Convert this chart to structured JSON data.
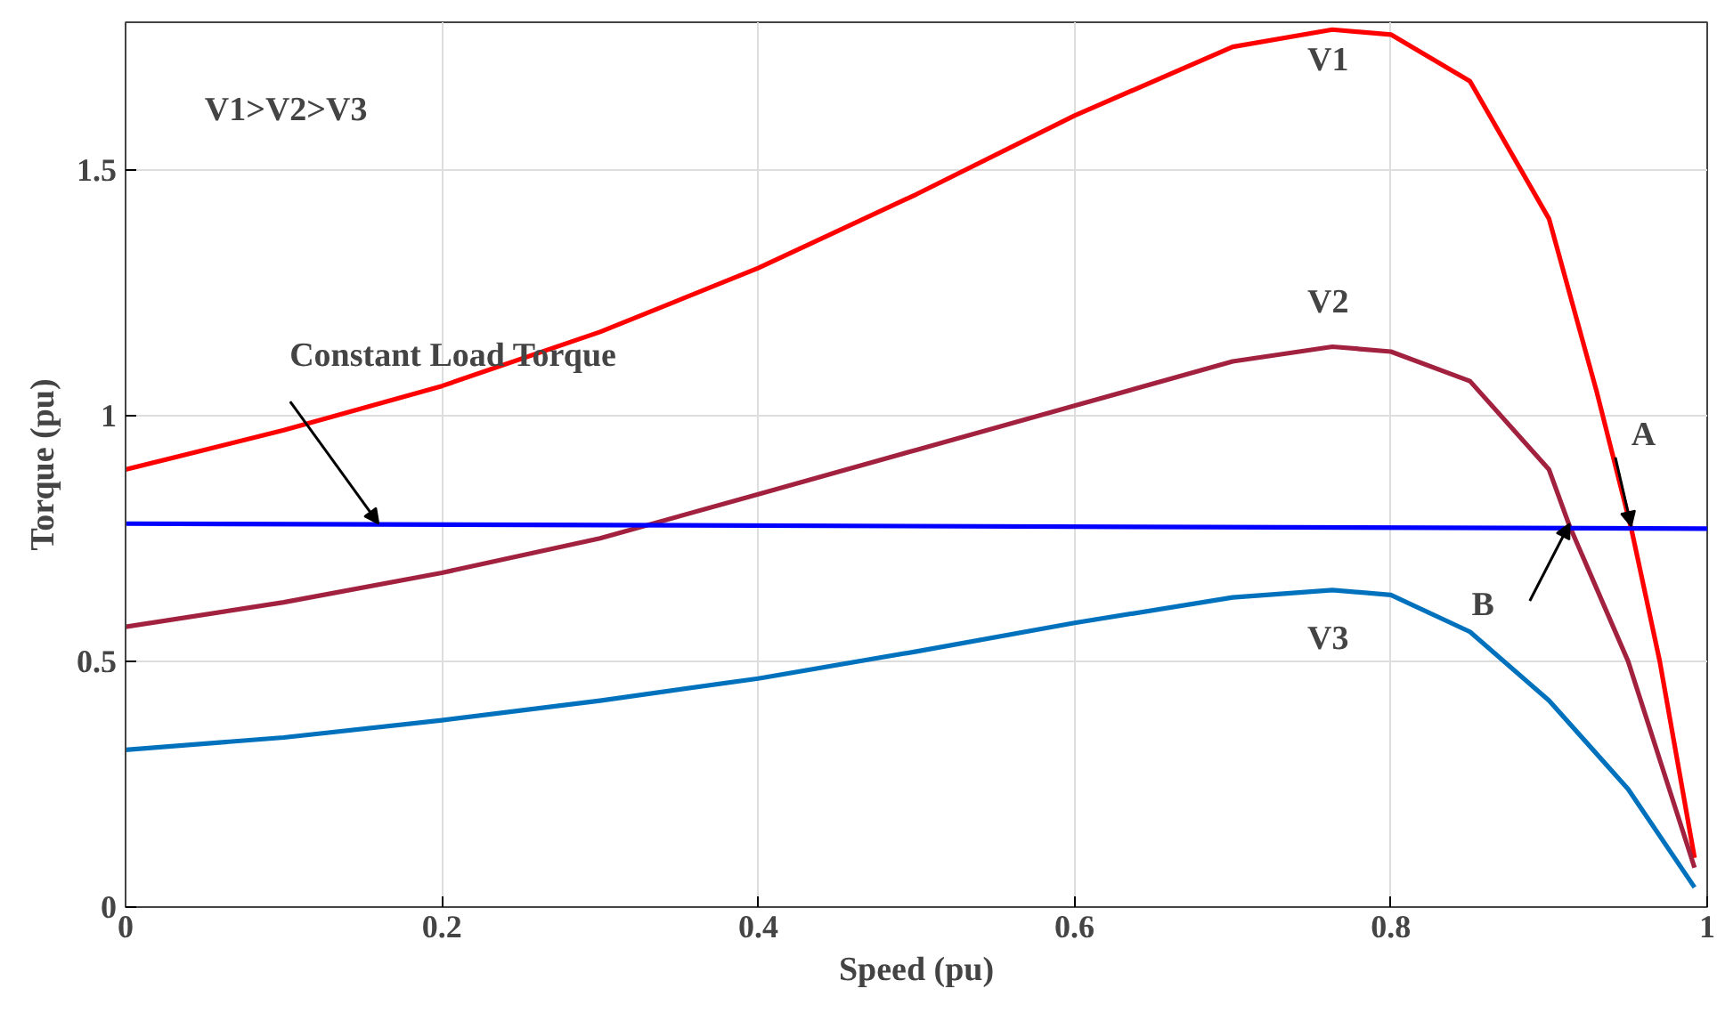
{
  "chart_data": {
    "type": "line",
    "xlabel": "Speed (pu)",
    "ylabel": "Torque (pu)",
    "xlim": [
      0,
      1
    ],
    "ylim": [
      0,
      1.8
    ],
    "xticks": [
      0,
      0.2,
      0.4,
      0.6,
      0.8,
      1
    ],
    "yticks": [
      0,
      0.5,
      1,
      1.5
    ],
    "grid": true,
    "line_style": "solid",
    "series": [
      {
        "name": "V1",
        "color": "#ff0000",
        "x": [
          0,
          0.1,
          0.2,
          0.3,
          0.4,
          0.5,
          0.6,
          0.7,
          0.763,
          0.8,
          0.85,
          0.9,
          0.93,
          0.952,
          0.97,
          0.992
        ],
        "values": [
          0.89,
          0.97,
          1.06,
          1.17,
          1.3,
          1.45,
          1.61,
          1.75,
          1.785,
          1.775,
          1.68,
          1.4,
          1.05,
          0.77,
          0.5,
          0.1
        ]
      },
      {
        "name": "V2",
        "color": "#a2213f",
        "x": [
          0,
          0.1,
          0.2,
          0.3,
          0.4,
          0.5,
          0.6,
          0.7,
          0.763,
          0.8,
          0.85,
          0.9,
          0.913,
          0.95,
          0.992
        ],
        "values": [
          0.57,
          0.62,
          0.68,
          0.75,
          0.84,
          0.93,
          1.02,
          1.11,
          1.14,
          1.13,
          1.07,
          0.89,
          0.775,
          0.5,
          0.08
        ]
      },
      {
        "name": "V3",
        "color": "#0072bd",
        "x": [
          0,
          0.1,
          0.2,
          0.3,
          0.4,
          0.5,
          0.6,
          0.7,
          0.763,
          0.8,
          0.85,
          0.9,
          0.95,
          0.992
        ],
        "values": [
          0.32,
          0.345,
          0.38,
          0.42,
          0.465,
          0.52,
          0.578,
          0.63,
          0.645,
          0.635,
          0.56,
          0.42,
          0.24,
          0.04
        ]
      },
      {
        "color": "#0000ff",
        "x": [
          0,
          1
        ],
        "values": [
          0.78,
          0.77
        ]
      }
    ],
    "annotations": [
      "V1>V2>V3",
      {
        "text": "Constant Load Torque",
        "x": 0.16,
        "y": 0.775
      },
      {
        "text": "A",
        "x": 0.952,
        "y": 0.77
      },
      {
        "text": "B",
        "x": 0.913,
        "y": 0.775
      }
    ]
  }
}
